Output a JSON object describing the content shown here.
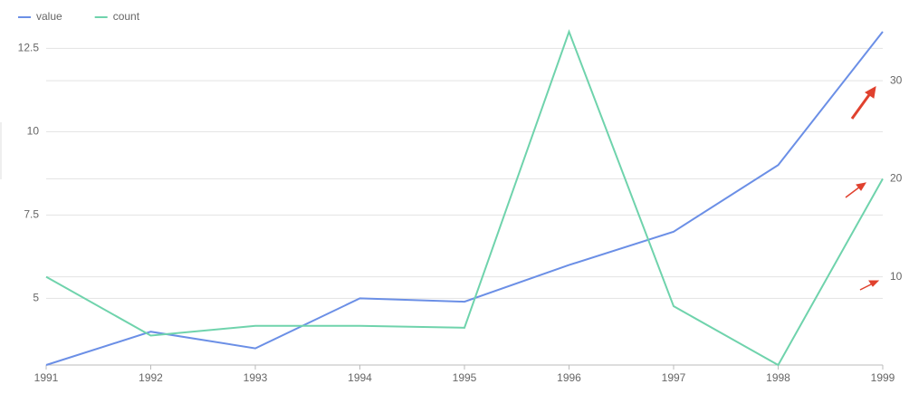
{
  "chart_data": {
    "type": "line",
    "categories": [
      "1991",
      "1992",
      "1993",
      "1994",
      "1995",
      "1996",
      "1997",
      "1998",
      "1999"
    ],
    "series": [
      {
        "name": "value",
        "color": "#6b8fe6",
        "values": [
          3,
          4,
          3.5,
          5,
          4.9,
          6,
          7,
          9,
          13
        ]
      },
      {
        "name": "count",
        "color": "#6fd3ac",
        "axis": "y2",
        "values": [
          10,
          4,
          5,
          5,
          4.8,
          35,
          7,
          1,
          20
        ]
      }
    ],
    "ylim": [
      3,
      13
    ],
    "yticks": [
      5,
      7.5,
      10,
      12.5
    ],
    "y2lim": [
      1,
      35
    ],
    "y2ticks": [
      10,
      20,
      30
    ],
    "grid": true,
    "legend": "top-left"
  }
}
